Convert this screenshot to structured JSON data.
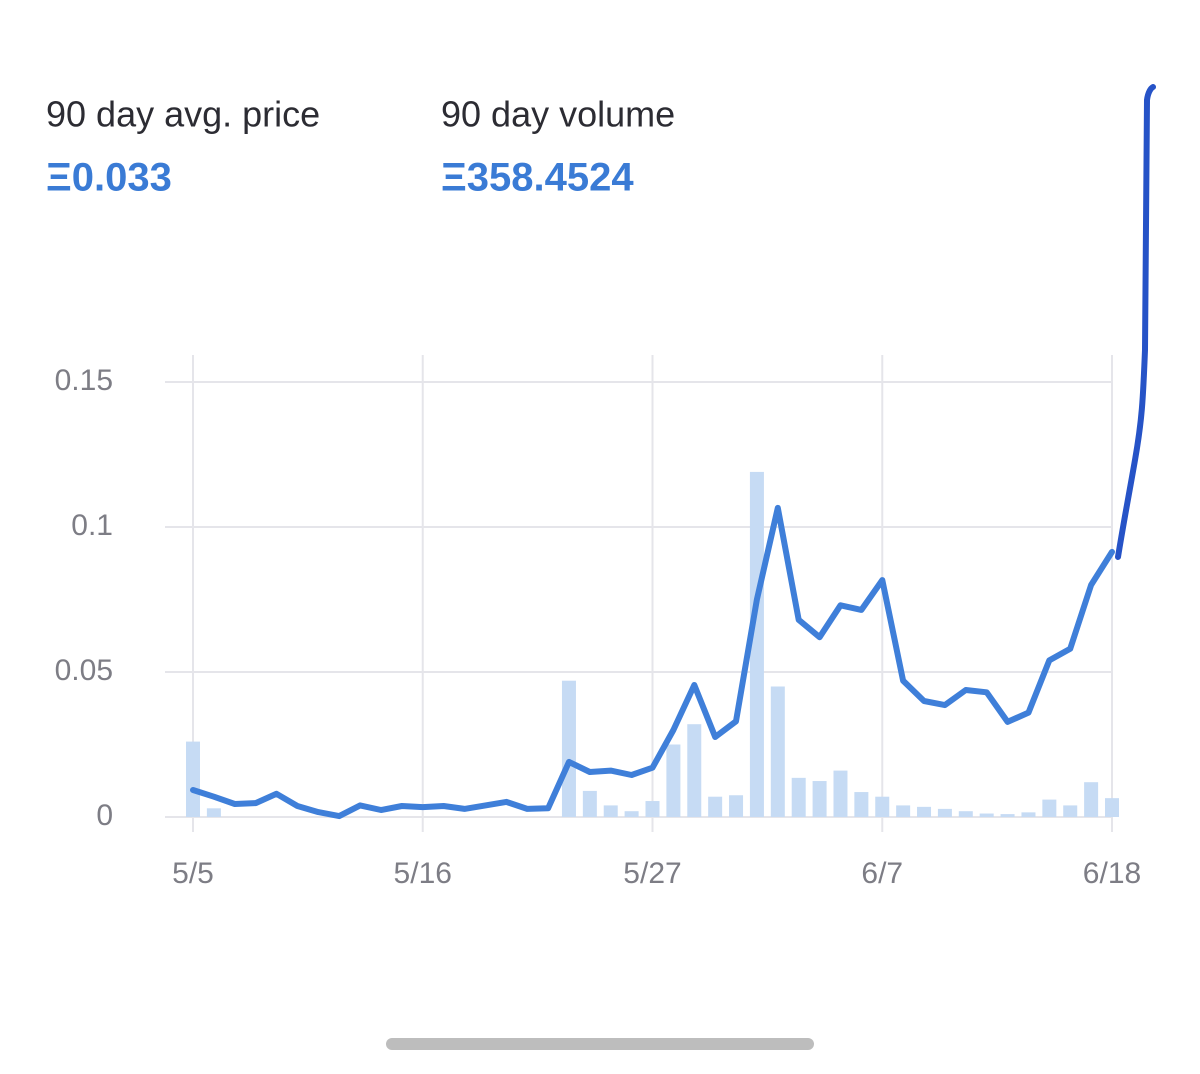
{
  "stats": [
    {
      "label": "90 day avg. price",
      "value": "Ξ0.033"
    },
    {
      "label": "90 day volume",
      "value": "Ξ358.4524"
    }
  ],
  "chart_data": {
    "type": "bar+line",
    "categories": [
      "5/5",
      null,
      null,
      null,
      null,
      null,
      null,
      null,
      null,
      null,
      null,
      "5/16",
      null,
      null,
      null,
      null,
      null,
      null,
      null,
      null,
      null,
      null,
      "5/27",
      null,
      null,
      null,
      null,
      null,
      null,
      null,
      null,
      null,
      null,
      "6/7",
      null,
      null,
      null,
      null,
      null,
      null,
      null,
      null,
      null,
      null,
      "6/18"
    ],
    "series": [
      {
        "type": "bar",
        "color": "#c6dbf4",
        "values": [
          0.026,
          0.003,
          0,
          0,
          0,
          0,
          0,
          0,
          0,
          0,
          0,
          0,
          0,
          0,
          0,
          0,
          0,
          0,
          0.047,
          0.009,
          0.004,
          0.002,
          0.0055,
          0.025,
          0.032,
          0.007,
          0.0075,
          0.119,
          0.045,
          0.0135,
          0.0124,
          0.016,
          0.0086,
          0.007,
          0.004,
          0.0035,
          0.0028,
          0.002,
          0.0012,
          0.001,
          0.0016,
          0.006,
          0.004,
          0.012,
          0.0065
        ]
      },
      {
        "type": "line",
        "color": "#3f7fd9",
        "values": [
          0.0093,
          0.007,
          0.0045,
          0.0048,
          0.008,
          0.0038,
          0.0017,
          0.0003,
          0.004,
          0.0024,
          0.0038,
          0.0034,
          0.0038,
          0.0028,
          0.004,
          0.0052,
          0.0028,
          0.003,
          0.019,
          0.0155,
          0.016,
          0.0145,
          0.017,
          0.03,
          0.0455,
          0.0276,
          0.033,
          0.075,
          0.1066,
          0.068,
          0.062,
          0.073,
          0.0714,
          0.0817,
          0.047,
          0.04,
          0.0386,
          0.0438,
          0.043,
          0.0328,
          0.036,
          0.054,
          0.058,
          0.08,
          0.0914
        ]
      }
    ],
    "ylim": [
      0,
      0.15
    ],
    "yticks": [
      0,
      0.05,
      0.1,
      0.15
    ],
    "grid": true
  }
}
